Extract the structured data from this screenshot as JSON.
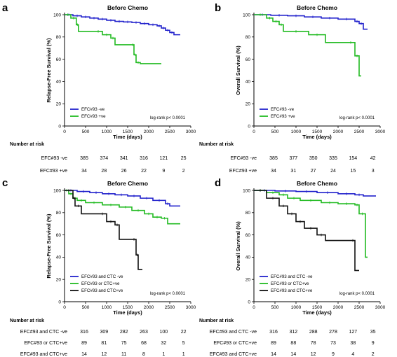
{
  "chart_data": [
    {
      "type": "line",
      "panel_label": "a",
      "title": "Before Chemo",
      "xlabel": "Time (days)",
      "ylabel": "Relapse-Free Survival (%)",
      "xlim": [
        0,
        3000
      ],
      "ylim": [
        0,
        100
      ],
      "xticks": [
        0,
        500,
        1000,
        1500,
        2000,
        2500,
        3000
      ],
      "yticks": [
        0,
        20,
        40,
        60,
        80,
        100
      ],
      "annotation": "log-rank p< 0.0001",
      "legend_position": "bottom-left",
      "series": [
        {
          "name": "EFC#93 -ve",
          "color": "#2222cc",
          "x": [
            0,
            200,
            400,
            600,
            800,
            1000,
            1200,
            1400,
            1600,
            1800,
            2000,
            2200,
            2300,
            2400,
            2500,
            2600,
            2750
          ],
          "y": [
            100,
            99,
            98,
            97,
            96,
            95,
            94,
            93.5,
            93,
            92,
            91,
            90,
            88,
            86,
            84,
            82,
            82
          ]
        },
        {
          "name": "EFC#93 +ve",
          "color": "#22bb22",
          "x": [
            0,
            150,
            280,
            330,
            700,
            900,
            1100,
            1200,
            1600,
            1650,
            1700,
            1800,
            2000,
            2200,
            2300
          ],
          "y": [
            100,
            97,
            91,
            85,
            85,
            82,
            79,
            73,
            73,
            64,
            57,
            56,
            56,
            56,
            56
          ]
        }
      ],
      "risk_table": {
        "header": "Number at risk",
        "rows": [
          {
            "label": "EFC#93 -ve",
            "values": [
              "385",
              "374",
              "341",
              "316",
              "121",
              "25"
            ]
          },
          {
            "label": "EFC#93 +ve",
            "values": [
              "34",
              "28",
              "26",
              "22",
              "9",
              "2"
            ]
          }
        ]
      }
    },
    {
      "type": "line",
      "panel_label": "b",
      "title": "Before Chemo",
      "xlabel": "Time (days)",
      "ylabel": "Overall Survival (%)",
      "xlim": [
        0,
        3000
      ],
      "ylim": [
        0,
        100
      ],
      "xticks": [
        0,
        500,
        1000,
        1500,
        2000,
        2500,
        3000
      ],
      "yticks": [
        0,
        20,
        40,
        60,
        80,
        100
      ],
      "annotation": "log-rank p< 0.0001",
      "legend_position": "bottom-left",
      "series": [
        {
          "name": "EFC#93 -ve",
          "color": "#2222cc",
          "x": [
            0,
            400,
            800,
            1200,
            1600,
            2000,
            2400,
            2500,
            2600,
            2700
          ],
          "y": [
            100,
            99.5,
            99,
            98,
            97,
            96,
            94,
            92,
            87,
            87
          ]
        },
        {
          "name": "EFC#93 +ve",
          "color": "#22bb22",
          "x": [
            0,
            300,
            450,
            600,
            700,
            1300,
            1700,
            2200,
            2400,
            2500,
            2550
          ],
          "y": [
            100,
            97,
            94,
            91,
            85,
            82,
            75,
            75,
            63,
            45,
            45
          ]
        }
      ],
      "risk_table": {
        "header": "Number at risk",
        "rows": [
          {
            "label": "EFC#93 -ve",
            "values": [
              "385",
              "377",
              "350",
              "335",
              "154",
              "42"
            ]
          },
          {
            "label": "EFC#93 +ve",
            "values": [
              "34",
              "31",
              "27",
              "24",
              "15",
              "3"
            ]
          }
        ]
      }
    },
    {
      "type": "line",
      "panel_label": "c",
      "title": "Before Chemo",
      "xlabel": "Time (days)",
      "ylabel": "Relapse-Free Survival (%)",
      "xlim": [
        0,
        3000
      ],
      "ylim": [
        0,
        100
      ],
      "xticks": [
        0,
        500,
        1000,
        1500,
        2000,
        2500,
        3000
      ],
      "yticks": [
        0,
        20,
        40,
        60,
        80,
        100
      ],
      "annotation": "log-rank p< 0.0001",
      "legend_position": "bottom-left",
      "series": [
        {
          "name": "EFC#93 and CTC -ve",
          "color": "#2222cc",
          "x": [
            0,
            300,
            600,
            900,
            1200,
            1500,
            1800,
            2100,
            2400,
            2500,
            2750
          ],
          "y": [
            100,
            99,
            98,
            97,
            96,
            95,
            93,
            91,
            88,
            86,
            86
          ]
        },
        {
          "name": "EFC#93 or CTC+ve",
          "color": "#22bb22",
          "x": [
            0,
            100,
            200,
            300,
            500,
            900,
            1300,
            1600,
            1900,
            2100,
            2300,
            2450,
            2750
          ],
          "y": [
            100,
            97,
            93,
            91,
            89,
            87,
            85,
            82,
            79,
            76,
            75,
            70,
            70
          ]
        },
        {
          "name": "EFC#93 and CTC+ve",
          "color": "#111111",
          "x": [
            0,
            200,
            250,
            400,
            800,
            1000,
            1200,
            1300,
            1600,
            1700,
            1750,
            1850
          ],
          "y": [
            100,
            93,
            86,
            79,
            79,
            72,
            69,
            56,
            56,
            42,
            29,
            29
          ]
        }
      ],
      "risk_table": {
        "header": "Number at risk",
        "rows": [
          {
            "label": "EFC#93  and CTC -ve",
            "values": [
              "316",
              "309",
              "282",
              "263",
              "100",
              "22"
            ]
          },
          {
            "label": "EFC#93  or CTC+ve",
            "values": [
              "89",
              "81",
              "75",
              "68",
              "32",
              "5"
            ]
          },
          {
            "label": "EFC#93  and CTC+ve",
            "values": [
              "14",
              "12",
              "11",
              "8",
              "1",
              "1"
            ]
          }
        ]
      }
    },
    {
      "type": "line",
      "panel_label": "d",
      "title": "Before Chemo",
      "xlabel": "Time (days)",
      "ylabel": "Overall Survival (%)",
      "xlim": [
        0,
        3000
      ],
      "ylim": [
        0,
        100
      ],
      "xticks": [
        0,
        500,
        1000,
        1500,
        2000,
        2500,
        3000
      ],
      "yticks": [
        0,
        20,
        40,
        60,
        80,
        100
      ],
      "annotation": "log-rank p< 0.0001",
      "legend_position": "bottom-left",
      "series": [
        {
          "name": "EFC#93 and CTC -ve",
          "color": "#2222cc",
          "x": [
            0,
            500,
            1000,
            1500,
            2000,
            2400,
            2600,
            2900
          ],
          "y": [
            100,
            99.5,
            99,
            98,
            97,
            96,
            95,
            95
          ]
        },
        {
          "name": "EFC#93 or CTC+ve",
          "color": "#22bb22",
          "x": [
            0,
            300,
            600,
            800,
            1100,
            1600,
            2000,
            2400,
            2500,
            2650,
            2700
          ],
          "y": [
            100,
            98,
            96,
            93,
            91,
            89,
            88,
            87,
            79,
            40,
            40
          ]
        },
        {
          "name": "EFC#93 and CTC+ve",
          "color": "#111111",
          "x": [
            0,
            300,
            600,
            800,
            1000,
            1200,
            1500,
            1700,
            2000,
            2300,
            2400,
            2500
          ],
          "y": [
            100,
            93,
            86,
            79,
            72,
            66,
            60,
            55,
            55,
            55,
            28,
            28
          ]
        }
      ],
      "risk_table": {
        "header": "Number at risk",
        "rows": [
          {
            "label": "EFC#93  and CTC -ve",
            "values": [
              "316",
              "312",
              "288",
              "278",
              "127",
              "35"
            ]
          },
          {
            "label": "EFC#93  or CTC+ve",
            "values": [
              "89",
              "88",
              "78",
              "73",
              "38",
              "9"
            ]
          },
          {
            "label": "EFC#93  and CTC+ve",
            "values": [
              "14",
              "14",
              "12",
              "9",
              "4",
              "2"
            ]
          }
        ]
      }
    }
  ]
}
